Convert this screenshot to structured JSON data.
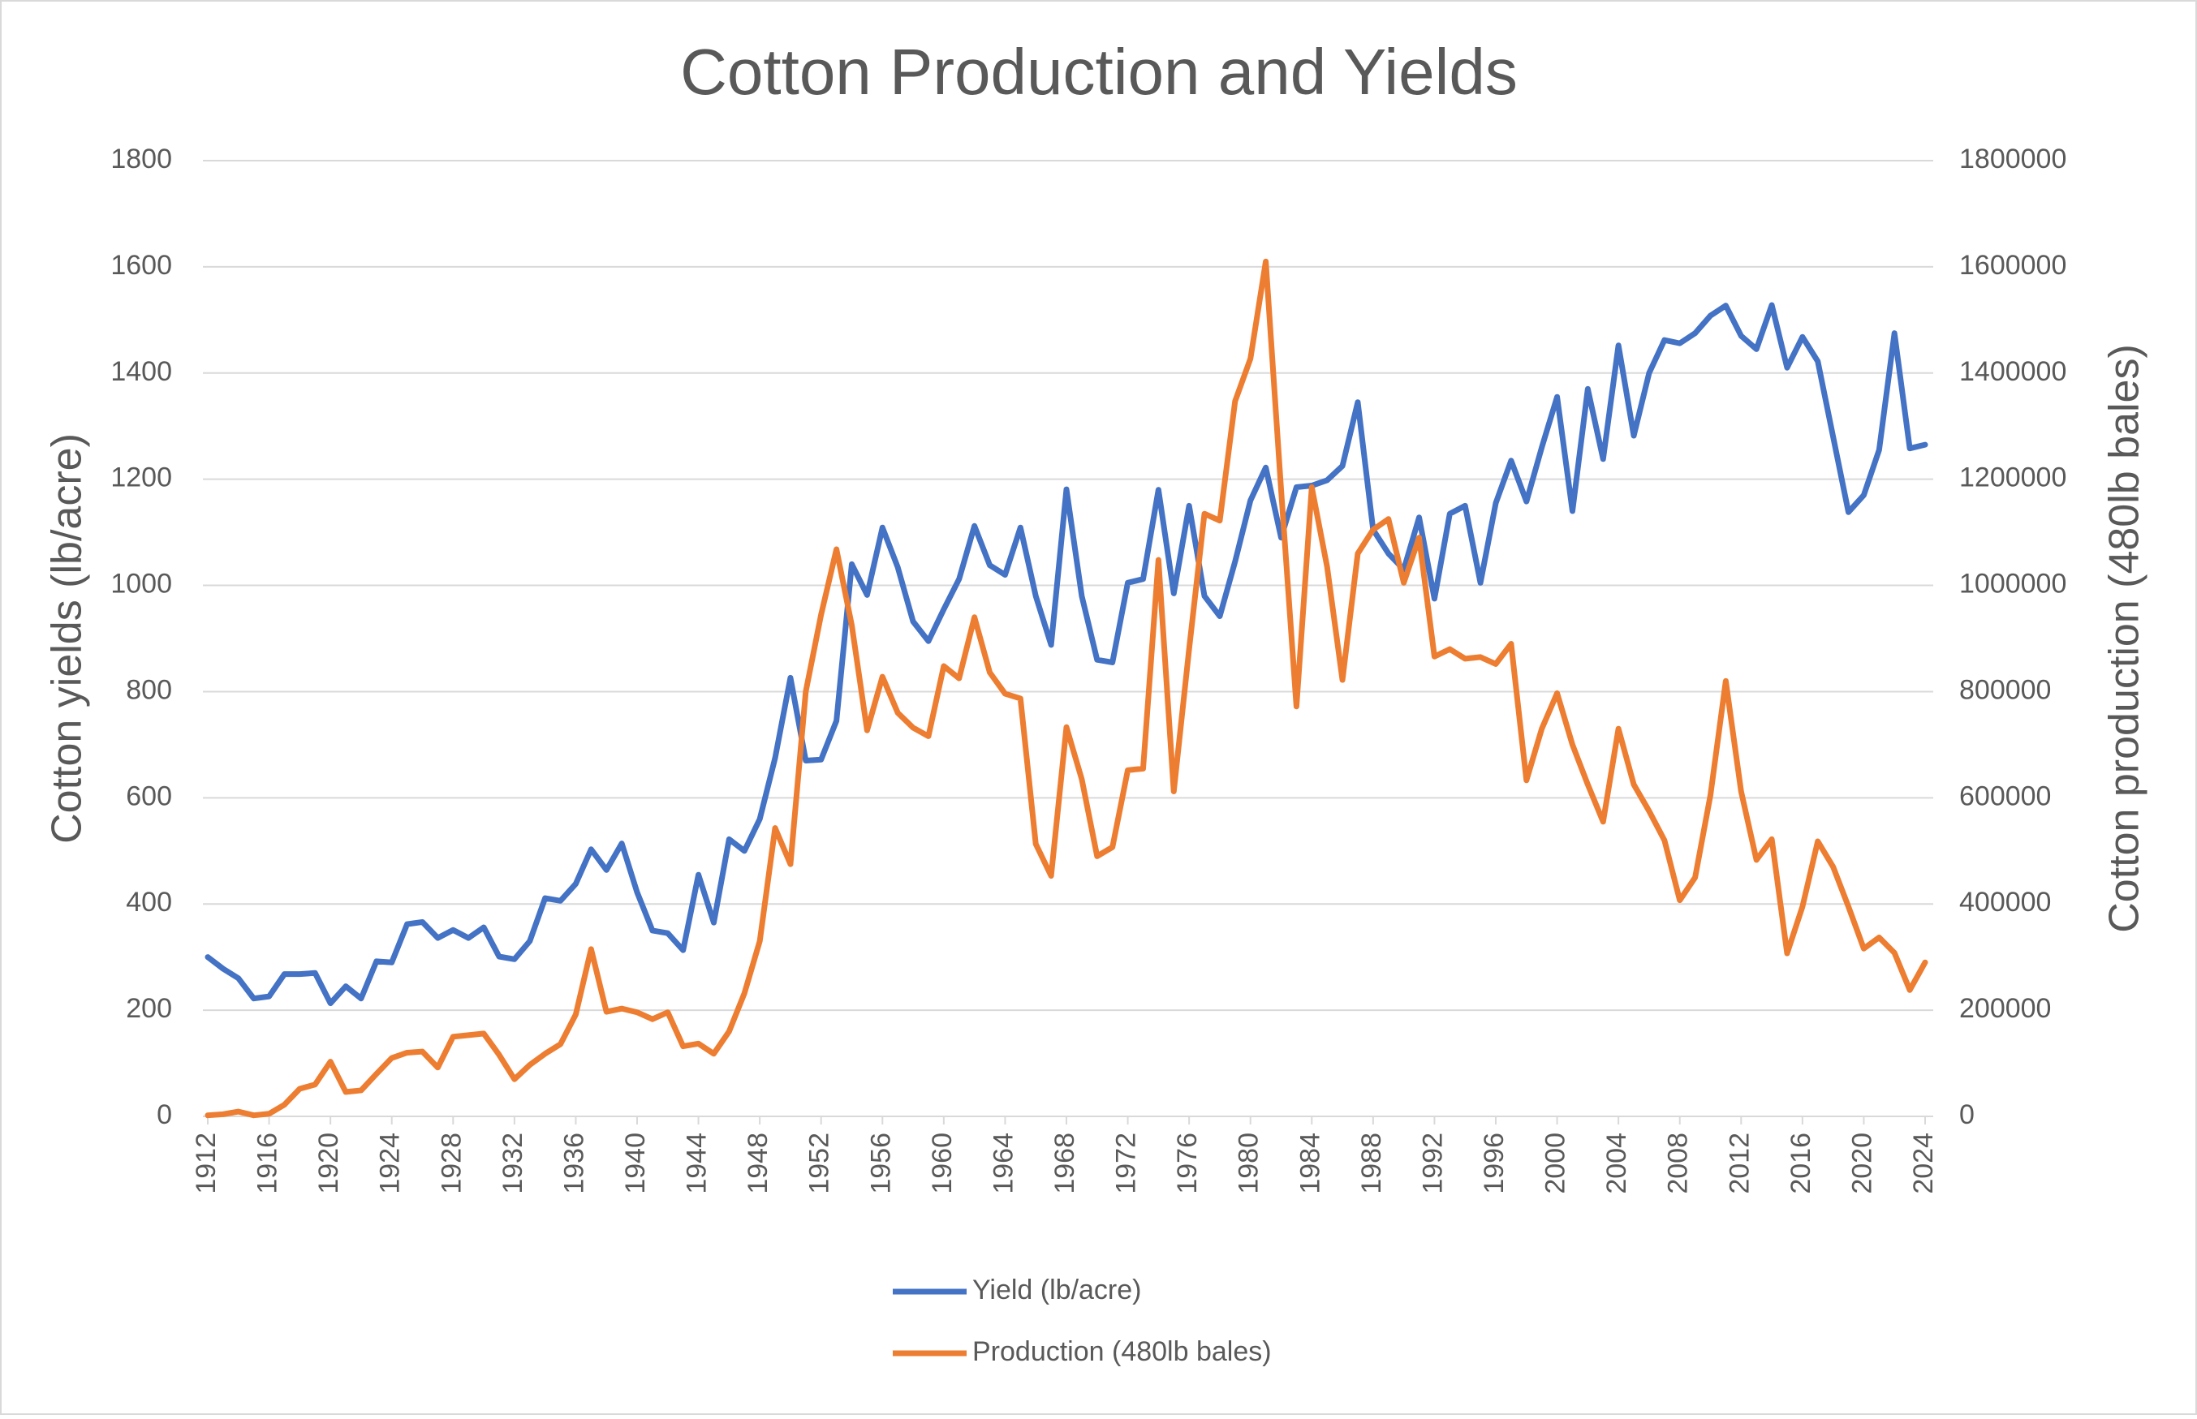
{
  "chart_data": {
    "type": "line",
    "title": "Cotton Production and Yields",
    "y_label": "Cotton yields (lb/acre)",
    "y2_label": "Cotton production (480lb bales)",
    "x": [
      1912,
      1913,
      1914,
      1915,
      1916,
      1917,
      1918,
      1919,
      1920,
      1921,
      1922,
      1923,
      1924,
      1925,
      1926,
      1927,
      1928,
      1929,
      1930,
      1931,
      1932,
      1933,
      1934,
      1935,
      1936,
      1937,
      1938,
      1939,
      1940,
      1941,
      1942,
      1943,
      1944,
      1945,
      1946,
      1947,
      1948,
      1949,
      1950,
      1951,
      1952,
      1953,
      1954,
      1955,
      1956,
      1957,
      1958,
      1959,
      1960,
      1961,
      1962,
      1963,
      1964,
      1965,
      1966,
      1967,
      1968,
      1969,
      1970,
      1971,
      1972,
      1973,
      1974,
      1975,
      1976,
      1977,
      1978,
      1979,
      1980,
      1981,
      1982,
      1983,
      1984,
      1985,
      1986,
      1987,
      1988,
      1989,
      1990,
      1991,
      1992,
      1993,
      1994,
      1995,
      1996,
      1997,
      1998,
      1999,
      2000,
      2001,
      2002,
      2003,
      2004,
      2005,
      2006,
      2007,
      2008,
      2009,
      2010,
      2011,
      2012,
      2013,
      2014,
      2015,
      2016,
      2017,
      2018,
      2019,
      2020,
      2021,
      2022,
      2023,
      2024
    ],
    "xlim": [
      1912,
      2024
    ],
    "xticks": [
      1912,
      1916,
      1920,
      1924,
      1928,
      1932,
      1936,
      1940,
      1944,
      1948,
      1952,
      1956,
      1960,
      1964,
      1968,
      1972,
      1976,
      1980,
      1984,
      1988,
      1992,
      1996,
      2000,
      2004,
      2008,
      2012,
      2016,
      2020,
      2024
    ],
    "ylim": [
      0,
      1800
    ],
    "yticks": [
      0,
      200,
      400,
      600,
      800,
      1000,
      1200,
      1400,
      1600,
      1800
    ],
    "y2lim": [
      0,
      1800000
    ],
    "y2ticks": [
      0,
      200000,
      400000,
      600000,
      800000,
      1000000,
      1200000,
      1400000,
      1600000,
      1800000
    ],
    "grid": true,
    "legend": "bottom",
    "series": [
      {
        "name": "Yield (lb/acre)",
        "color": "#4472c4",
        "values": [
          300,
          278,
          260,
          222,
          226,
          268,
          268,
          270,
          213,
          245,
          222,
          292,
          290,
          362,
          366,
          336,
          351,
          336,
          356,
          301,
          296,
          330,
          411,
          406,
          438,
          503,
          464,
          514,
          422,
          350,
          345,
          313,
          455,
          365,
          522,
          500,
          560,
          675,
          826,
          670,
          672,
          745,
          1040,
          982,
          1109,
          1034,
          932,
          895,
          955,
          1012,
          1112,
          1038,
          1020,
          1109,
          980,
          888,
          1181,
          980,
          860,
          855,
          1005,
          1012,
          1180,
          985,
          1150,
          980,
          942,
          1045,
          1160,
          1222,
          1090,
          1185,
          1188,
          1198,
          1225,
          1345,
          1105,
          1060,
          1030,
          1128,
          975,
          1135,
          1150,
          1005,
          1155,
          1235,
          1158,
          1260,
          1355,
          1140,
          1370,
          1238,
          1452,
          1282,
          1400,
          1462,
          1456,
          1475,
          1508,
          1527,
          1470,
          1445,
          1528,
          1410,
          1468,
          1422,
          1280,
          1138,
          1170,
          1255,
          1475,
          1258,
          1265
        ]
      },
      {
        "name": "Production (480lb bales)",
        "color": "#ed7d31",
        "axis": "y2",
        "values": [
          2000,
          4000,
          9000,
          2000,
          5000,
          22000,
          52000,
          60000,
          103000,
          46000,
          49000,
          80000,
          110000,
          120000,
          122000,
          92000,
          150000,
          153000,
          156000,
          116000,
          70000,
          97000,
          118000,
          136000,
          192000,
          315000,
          197000,
          203000,
          196000,
          183000,
          196000,
          132000,
          137000,
          118000,
          160000,
          232000,
          330000,
          543000,
          475000,
          800000,
          945000,
          1068000,
          925000,
          727000,
          828000,
          760000,
          732000,
          716000,
          848000,
          825000,
          940000,
          836000,
          796000,
          787000,
          513000,
          453000,
          733000,
          635000,
          490000,
          507000,
          652000,
          655000,
          1048000,
          612000,
          880000,
          1135000,
          1122000,
          1347000,
          1427000,
          1610000,
          1180000,
          772000,
          1185000,
          1035000,
          822000,
          1060000,
          1105000,
          1125000,
          1005000,
          1090000,
          866000,
          880000,
          862000,
          865000,
          852000,
          890000,
          633000,
          730000,
          797000,
          700000,
          625000,
          555000,
          730000,
          625000,
          575000,
          520000,
          407000,
          450000,
          605000,
          820000,
          612000,
          483000,
          522000,
          307000,
          395000,
          518000,
          470000,
          395000,
          316000,
          337000,
          308000,
          238000,
          290000
        ]
      }
    ]
  }
}
